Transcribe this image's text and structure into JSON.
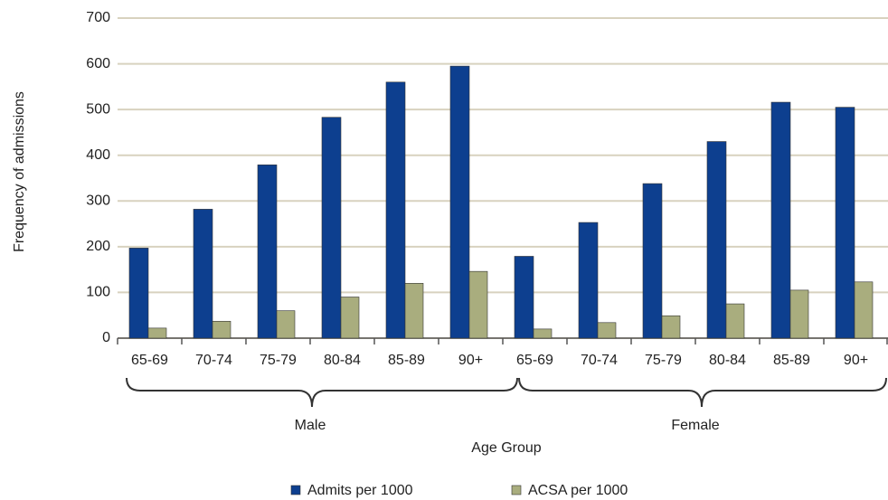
{
  "chart_data": {
    "type": "bar",
    "x_label": "Age Group",
    "y_label": "Frequency of admissions",
    "groups": [
      {
        "label": "Male",
        "categories": [
          "65-69",
          "70-74",
          "75-79",
          "80-84",
          "85-89",
          "90+"
        ]
      },
      {
        "label": "Female",
        "categories": [
          "65-69",
          "70-74",
          "75-79",
          "80-84",
          "85-89",
          "90+"
        ]
      }
    ],
    "series": [
      {
        "name": "Admits per 1000",
        "color": "#0d3f8f",
        "values": [
          197,
          282,
          379,
          483,
          560,
          595,
          179,
          253,
          338,
          430,
          516,
          505
        ]
      },
      {
        "name": "ACSA per 1000",
        "color": "#a9ad7e",
        "values": [
          22,
          37,
          60,
          90,
          120,
          146,
          20,
          34,
          49,
          75,
          105,
          123
        ]
      }
    ],
    "ylim": [
      0,
      700
    ],
    "yticks": [
      0,
      100,
      200,
      300,
      400,
      500,
      600,
      700
    ],
    "grid": true,
    "legend": "bottom"
  }
}
